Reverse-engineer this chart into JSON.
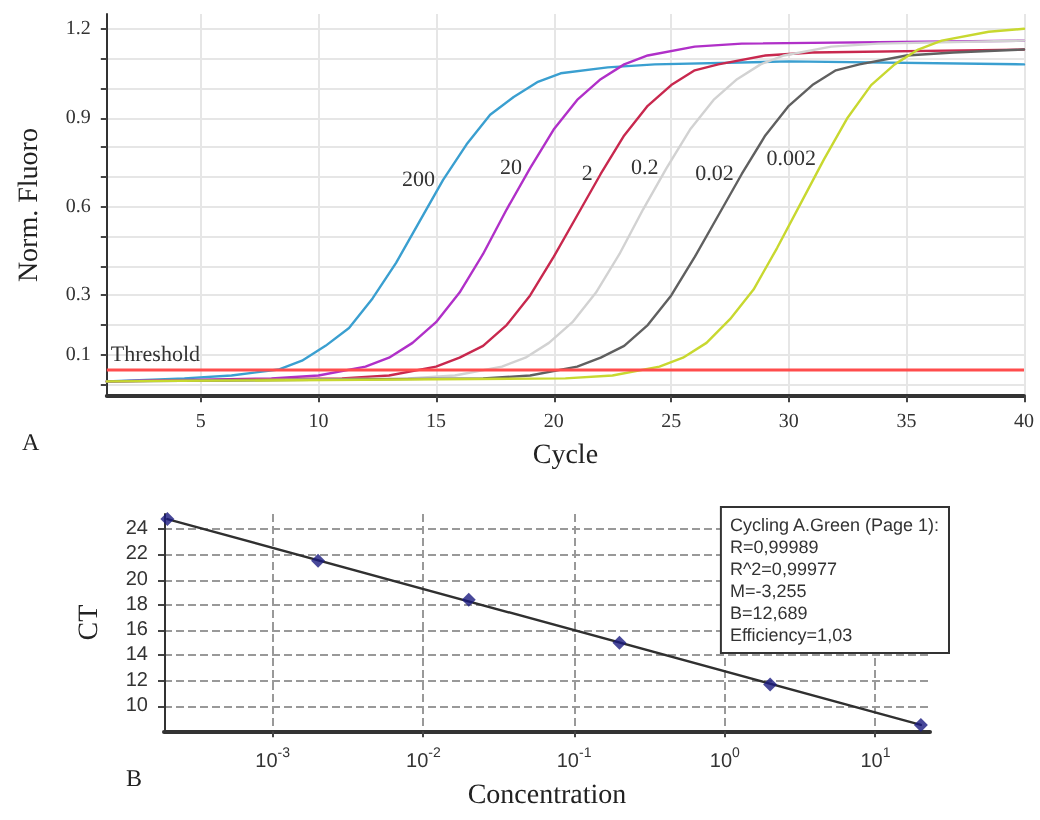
{
  "chart_data": [
    {
      "type": "line",
      "title": "A",
      "xlabel": "Cycle",
      "ylabel": "Norm. Fluoro",
      "xlim": [
        1,
        40
      ],
      "xticks": [
        5,
        10,
        15,
        20,
        25,
        30,
        35,
        40
      ],
      "ylim": [
        -0.04,
        1.25
      ],
      "yticks": [
        {
          "value": 0,
          "label": null
        },
        0.1,
        {
          "value": 0.2,
          "label": null
        },
        0.3,
        {
          "value": 0.4,
          "label": null
        },
        {
          "value": 0.5,
          "label": null
        },
        0.6,
        {
          "value": 0.7,
          "label": null
        },
        {
          "value": 0.8,
          "label": null
        },
        0.9,
        {
          "value": 1.0,
          "label": null
        },
        {
          "value": 1.1,
          "label": null
        },
        1.2
      ],
      "grid": true,
      "legend": false,
      "marker": "none",
      "line_style": "solid",
      "ref_lines": [
        {
          "axis": "y",
          "value": 0.05,
          "label": "Threshold",
          "color": "#ff4d4d"
        }
      ],
      "series": [
        {
          "name": "200",
          "color": "#3a9fd0",
          "x": [
            1,
            4.3,
            6.3,
            8.3,
            9.3,
            10.3,
            11.3,
            12.3,
            13.3,
            14.3,
            15.3,
            16.3,
            17.3,
            18.3,
            19.3,
            20.3,
            22.3,
            24.3,
            30,
            40
          ],
          "values": [
            0.01,
            0.02,
            0.03,
            0.05,
            0.08,
            0.13,
            0.19,
            0.29,
            0.41,
            0.55,
            0.69,
            0.81,
            0.91,
            0.97,
            1.02,
            1.05,
            1.07,
            1.08,
            1.09,
            1.08
          ]
        },
        {
          "name": "20",
          "color": "#b030c8",
          "x": [
            1,
            8,
            10,
            12,
            13,
            14,
            15,
            16,
            17,
            18,
            19,
            20,
            21,
            22,
            23,
            24,
            26,
            28,
            40
          ],
          "values": [
            0.01,
            0.02,
            0.03,
            0.06,
            0.09,
            0.14,
            0.21,
            0.31,
            0.44,
            0.59,
            0.73,
            0.86,
            0.96,
            1.03,
            1.08,
            1.11,
            1.14,
            1.15,
            1.16
          ]
        },
        {
          "name": "2",
          "color": "#c8284e",
          "x": [
            1,
            11,
            13,
            15,
            16,
            17,
            18,
            19,
            20,
            21,
            22,
            23,
            24,
            25,
            26,
            27,
            29,
            31,
            40
          ],
          "values": [
            0.01,
            0.02,
            0.03,
            0.06,
            0.09,
            0.13,
            0.2,
            0.3,
            0.43,
            0.57,
            0.71,
            0.84,
            0.94,
            1.01,
            1.06,
            1.08,
            1.11,
            1.12,
            1.13
          ]
        },
        {
          "name": "0.2",
          "color": "#d2d2d2",
          "x": [
            1,
            13.8,
            15.8,
            17.8,
            18.8,
            19.8,
            20.8,
            21.8,
            22.8,
            23.8,
            24.8,
            25.8,
            26.8,
            27.8,
            28.8,
            29.8,
            31.8,
            33.8,
            40
          ],
          "values": [
            0.01,
            0.02,
            0.03,
            0.06,
            0.09,
            0.14,
            0.21,
            0.31,
            0.44,
            0.59,
            0.73,
            0.86,
            0.96,
            1.03,
            1.08,
            1.11,
            1.14,
            1.15,
            1.16
          ]
        },
        {
          "name": "0.02",
          "color": "#606060",
          "x": [
            1,
            17,
            19,
            21,
            22,
            23,
            24,
            25,
            26,
            27,
            28,
            29,
            30,
            31,
            32,
            33,
            35,
            37,
            40
          ],
          "values": [
            0.01,
            0.02,
            0.03,
            0.06,
            0.09,
            0.13,
            0.2,
            0.3,
            0.43,
            0.57,
            0.71,
            0.84,
            0.94,
            1.01,
            1.06,
            1.08,
            1.11,
            1.12,
            1.13
          ]
        },
        {
          "name": "0.002",
          "color": "#c8d830",
          "x": [
            1,
            20.5,
            22.5,
            24.5,
            25.5,
            26.5,
            27.5,
            28.5,
            29.5,
            30.5,
            31.5,
            32.5,
            33.5,
            34.5,
            35.5,
            36.5,
            38.5,
            40
          ],
          "values": [
            0.01,
            0.02,
            0.03,
            0.06,
            0.09,
            0.14,
            0.22,
            0.32,
            0.46,
            0.61,
            0.76,
            0.9,
            1.01,
            1.08,
            1.13,
            1.16,
            1.19,
            1.2
          ]
        }
      ]
    },
    {
      "type": "scatter",
      "title": "B",
      "xlabel": "Concentration",
      "ylabel": "CT",
      "log": "x",
      "xlim": [
        0.00019,
        23
      ],
      "xticks": [
        {
          "value": 0.001,
          "label": "10$^{-3}$"
        },
        {
          "value": 0.01,
          "label": "10$^{-2}$"
        },
        {
          "value": 0.1,
          "label": "10$^{-1}$"
        },
        {
          "value": 1,
          "label": "10$^{0}$"
        },
        {
          "value": 10,
          "label": "10$^{1}$"
        }
      ],
      "ylim": [
        8,
        25.2
      ],
      "yticks": [
        10,
        12,
        14,
        16,
        18,
        20,
        22,
        24
      ],
      "grid": true,
      "legend": false,
      "annotations": [
        "Cycling A.Green (Page 1):",
        "R=0,99989",
        "R^2=0,99977",
        "M=-3,255",
        "B=12,689",
        "Efficiency=1,03"
      ],
      "series": [
        {
          "color": "#1a1a80",
          "marker": "diamond",
          "x": [
            0.0002,
            0.002,
            0.02,
            0.2,
            2,
            20
          ],
          "values": [
            24.8,
            21.5,
            18.4,
            15.0,
            11.7,
            8.5
          ]
        },
        {
          "type": "line",
          "color": "#303030",
          "marker": "none",
          "x": [
            0.0002,
            20
          ],
          "values": [
            24.8,
            8.5
          ]
        }
      ]
    }
  ]
}
